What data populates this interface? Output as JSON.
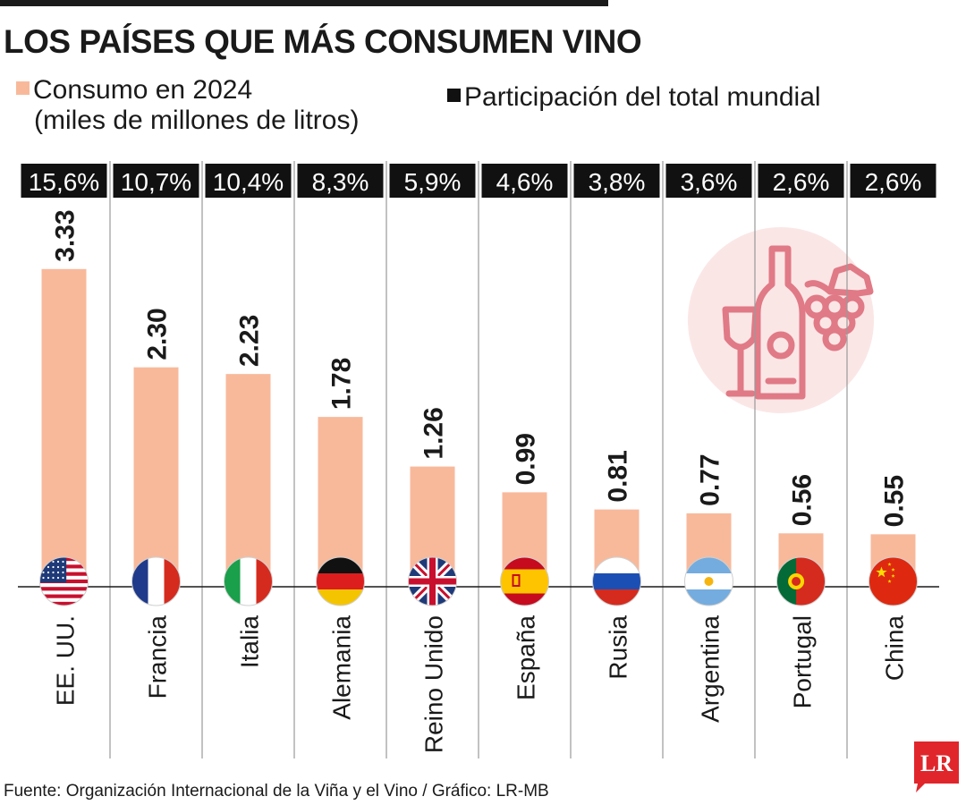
{
  "title": "LOS PAÍSES QUE MÁS CONSUMEN VINO",
  "legend": {
    "consumo_line1": "Consumo en 2024",
    "consumo_line2": "(miles de millones de litros)",
    "share": "Participación del total mundial"
  },
  "chart_data": {
    "type": "bar",
    "title": "LOS PAÍSES QUE MÁS CONSUMEN VINO",
    "ylabel": "Consumo en 2024 (miles de millones de litros)",
    "xlabel": "",
    "ylim": [
      0,
      3.6
    ],
    "grid": false,
    "categories": [
      "EE. UU.",
      "Francia",
      "Italia",
      "Alemania",
      "Reino Unido",
      "España",
      "Rusia",
      "Argentina",
      "Portugal",
      "China"
    ],
    "values": [
      3.33,
      2.3,
      2.23,
      1.78,
      1.26,
      0.99,
      0.81,
      0.77,
      0.56,
      0.55
    ],
    "value_labels": [
      "3.33",
      "2.30",
      "2.23",
      "1.78",
      "1.26",
      "0.99",
      "0.81",
      "0.77",
      "0.56",
      "0.55"
    ],
    "shares": [
      "15,6%",
      "10,7%",
      "10,4%",
      "8,3%",
      "5,9%",
      "4,6%",
      "3,8%",
      "3,6%",
      "2,6%",
      "2,6%"
    ],
    "flags": [
      "usa-flag",
      "france-flag",
      "italy-flag",
      "germany-flag",
      "uk-flag",
      "spain-flag",
      "russia-flag",
      "argentina-flag",
      "portugal-flag",
      "china-flag"
    ]
  },
  "colors": {
    "bar": "#f8b99b",
    "share_bg": "#111111",
    "share_text": "#ffffff",
    "text": "#1a1a1a",
    "divider": "#9a9a9a",
    "icon_circle": "#fbe6e6",
    "icon_stroke": "#e07a86",
    "logo": "#e0262b"
  },
  "icons": {
    "wine": "wine-bottle-glass-grapes-icon",
    "logo": "lr-logo"
  },
  "logo_text": "LR",
  "footer": {
    "source": "Fuente: Organización Internacional de la Viña y el Vino / Gráfico: LR-MB"
  }
}
